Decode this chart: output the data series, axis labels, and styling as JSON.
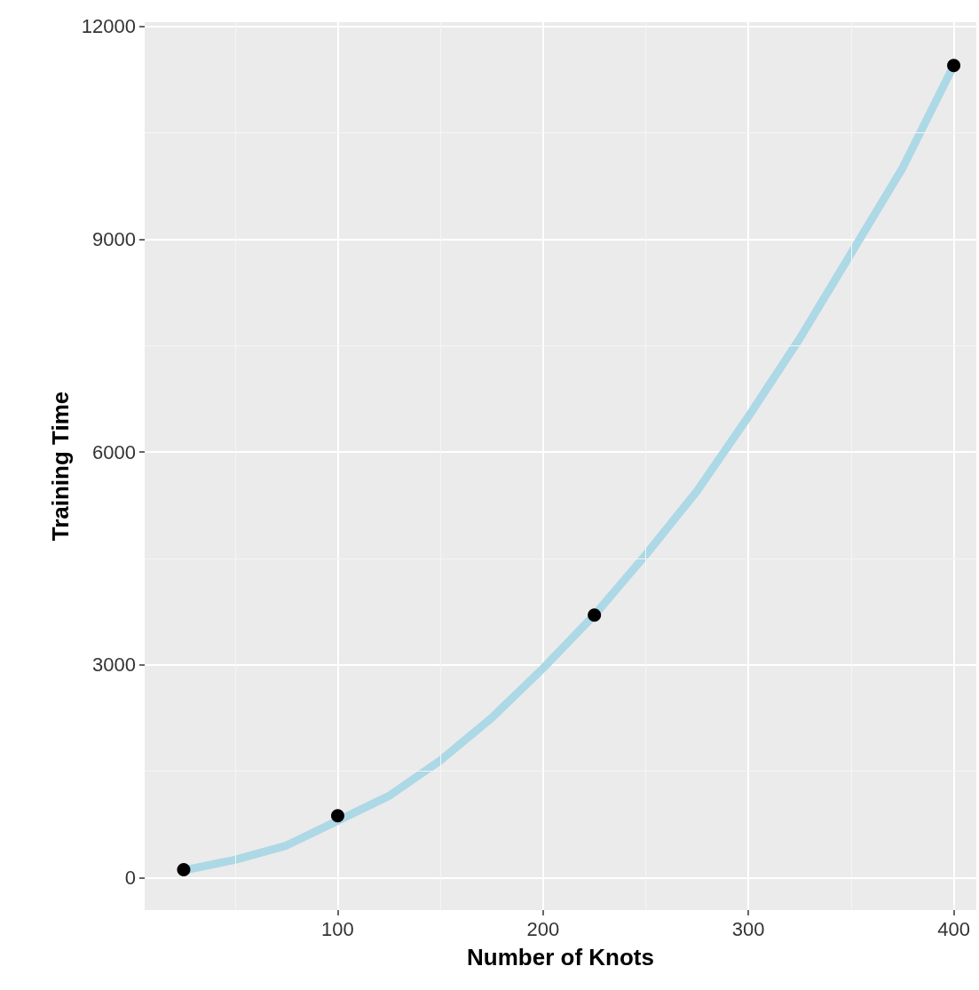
{
  "chart_data": {
    "type": "scatter",
    "xlabel": "Number of Knots",
    "ylabel": "Training Time",
    "xlim": [
      6,
      411
    ],
    "xticks": [
      100,
      200,
      300,
      400
    ],
    "ylim": [
      -460,
      12060
    ],
    "yticks": [
      0,
      3000,
      6000,
      9000,
      12000
    ],
    "grid": true,
    "series": [
      {
        "type": "line",
        "color": "#add8e6",
        "marker": "none",
        "x": [
          25,
          50,
          75,
          100,
          125,
          150,
          175,
          200,
          225,
          250,
          275,
          300,
          325,
          350,
          375,
          400
        ],
        "values": [
          100,
          250,
          450,
          800,
          1150,
          1650,
          2250,
          2950,
          3700,
          4550,
          5450,
          6500,
          7600,
          8800,
          10000,
          11450
        ]
      },
      {
        "color": "#000000",
        "marker": "circle",
        "x": [
          25,
          100,
          225,
          400
        ],
        "values": [
          110,
          870,
          3700,
          11450
        ]
      }
    ]
  }
}
